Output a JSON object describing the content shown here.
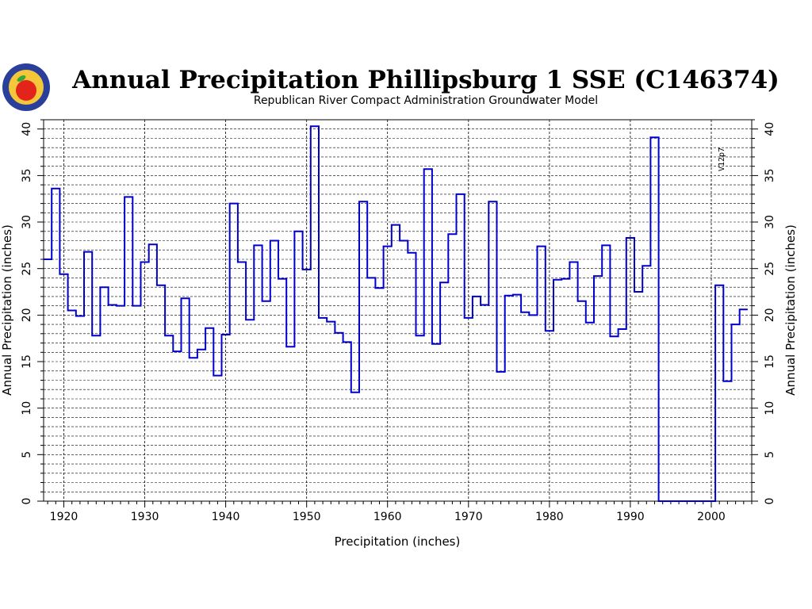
{
  "chart_data": {
    "type": "line",
    "step": true,
    "title": "Annual Precipitation Phillipsburg 1 SSE (C146374)",
    "subtitle": "Republican River Compact Administration Groundwater Model",
    "xlabel": "Precipitation (inches)",
    "ylabel_left": "Annual Precipitation (inches)",
    "ylabel_right": "Annual Precipitation (inches)",
    "annotation": {
      "text": "V12p7",
      "x": 2001
    },
    "xlim": [
      1917.5,
      2005
    ],
    "ylim": [
      0,
      41
    ],
    "x_ticks": [
      1920,
      1930,
      1940,
      1950,
      1960,
      1970,
      1980,
      1990,
      2000
    ],
    "y_ticks": [
      0,
      5,
      10,
      15,
      20,
      25,
      30,
      35,
      40
    ],
    "grid": true,
    "colors": {
      "series": "#0000cc",
      "grid": "#000000"
    },
    "series": [
      {
        "x": [
          1918,
          1919,
          1920,
          1921,
          1922,
          1923,
          1924,
          1925,
          1926,
          1927,
          1928,
          1929,
          1930,
          1931,
          1932,
          1933,
          1934,
          1935,
          1936,
          1937,
          1938,
          1939,
          1940,
          1941,
          1942,
          1943,
          1944,
          1945,
          1946,
          1947,
          1948,
          1949,
          1950,
          1951,
          1952,
          1953,
          1954,
          1955,
          1956,
          1957,
          1958,
          1959,
          1960,
          1961,
          1962,
          1963,
          1964,
          1965,
          1966,
          1967,
          1968,
          1969,
          1970,
          1971,
          1972,
          1973,
          1974,
          1975,
          1976,
          1977,
          1978,
          1979,
          1980,
          1981,
          1982,
          1983,
          1984,
          1985,
          1986,
          1987,
          1988,
          1989,
          1990,
          1991,
          1992,
          1993,
          1994,
          1995,
          1996,
          1997,
          1998,
          1999,
          2000,
          2001,
          2002,
          2003,
          2004
        ],
        "values": [
          26.0,
          33.6,
          24.4,
          20.5,
          19.9,
          26.8,
          17.8,
          23.0,
          21.1,
          21.0,
          32.7,
          21.0,
          25.7,
          27.6,
          23.2,
          17.8,
          16.1,
          21.8,
          15.4,
          16.3,
          18.6,
          13.5,
          17.9,
          32.0,
          25.7,
          19.5,
          27.5,
          21.5,
          28.0,
          23.9,
          16.6,
          29.0,
          24.9,
          40.3,
          19.7,
          19.3,
          18.1,
          17.1,
          11.7,
          32.2,
          24.0,
          22.9,
          27.4,
          29.7,
          28.0,
          26.7,
          17.8,
          35.7,
          16.9,
          23.5,
          28.7,
          33.0,
          19.7,
          22.0,
          21.1,
          32.2,
          13.9,
          22.1,
          22.2,
          20.3,
          20.0,
          27.4,
          18.3,
          23.8,
          23.9,
          25.7,
          21.5,
          19.2,
          24.2,
          27.5,
          17.7,
          18.5,
          28.3,
          22.5,
          25.3,
          39.1,
          0,
          0,
          0,
          0,
          0,
          0,
          0,
          23.2,
          12.9,
          19.0,
          20.6
        ]
      }
    ]
  },
  "logo": {
    "name": "Kansas Department of Agriculture",
    "colors": {
      "ring": "#2a3f9a",
      "disc": "#f5c63a",
      "apple": "#e3241b",
      "leaf": "#3aa635"
    }
  }
}
